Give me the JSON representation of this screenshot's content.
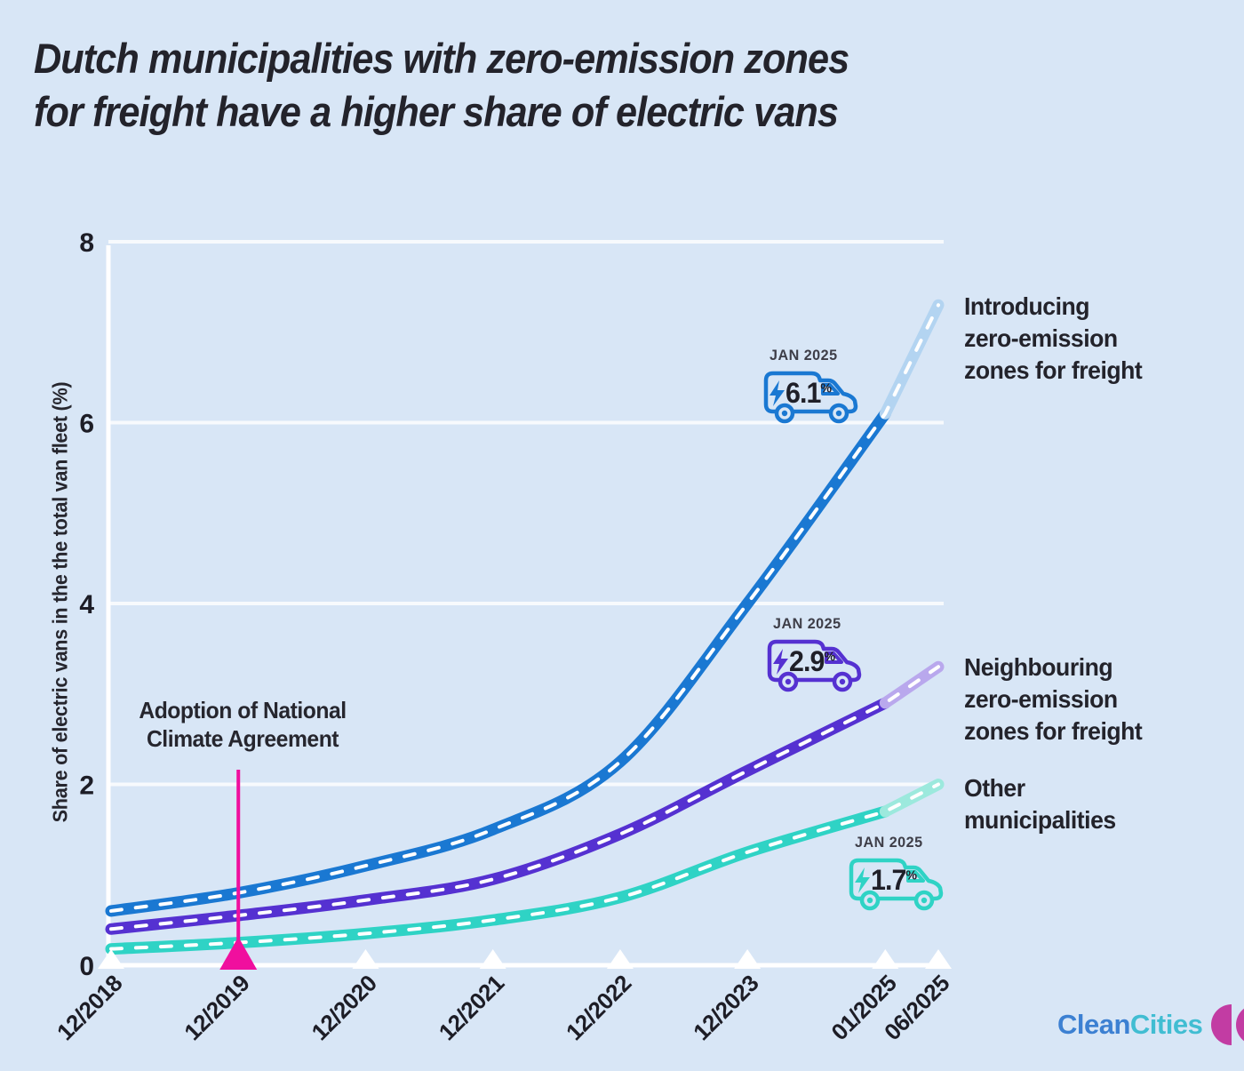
{
  "chart_data": {
    "type": "line",
    "title_lines": [
      "Dutch municipalities with zero-emission zones",
      "for freight have a higher share of electric vans"
    ],
    "ylabel": "Share of electric vans in the the total van fleet (%)",
    "ylim": [
      0,
      8
    ],
    "y_ticks": [
      "0",
      "2",
      "4",
      "6",
      "8"
    ],
    "x_tick_labels": [
      "12/2018",
      "12/2019",
      "12/2020",
      "12/2021",
      "12/2022",
      "12/2023",
      "01/2025",
      "06/2025"
    ],
    "x_months": [
      0,
      12,
      24,
      36,
      48,
      60,
      73,
      78
    ],
    "grid": "horizontal white gridlines at 2,4,6,8",
    "legend_position": "right",
    "projection_start_label": "01/2025",
    "annotation": {
      "lines": [
        "Adoption of National",
        "Climate Agreement"
      ],
      "x_label": "12/2019",
      "x_month": 12,
      "color": "#f00f9e"
    },
    "series": [
      {
        "name": "Introducing zero-emission zones for freight",
        "legend": [
          "Introducing",
          "zero-emission",
          "zones for freight"
        ],
        "color": "#1a78d2",
        "projection_color": "#b3d4f1",
        "values": [
          0.6,
          0.8,
          1.1,
          1.5,
          2.25,
          4.0,
          6.1,
          7.3
        ],
        "badge": {
          "date_label": "JAN 2025",
          "value": "6.1",
          "unit": "%"
        }
      },
      {
        "name": "Neighbouring zero-emission zones for freight",
        "legend": [
          "Neighbouring",
          "zero-emission",
          "zones for freight"
        ],
        "color": "#5531d1",
        "projection_color": "#b9a8ed",
        "values": [
          0.4,
          0.55,
          0.72,
          0.95,
          1.45,
          2.15,
          2.9,
          3.3
        ],
        "badge": {
          "date_label": "JAN 2025",
          "value": "2.9",
          "unit": "%"
        }
      },
      {
        "name": "Other municipalities",
        "legend": [
          "Other",
          "municipalities"
        ],
        "color": "#2fd3c5",
        "projection_color": "#9ce9dd",
        "values": [
          0.18,
          0.25,
          0.35,
          0.5,
          0.75,
          1.25,
          1.7,
          2.0
        ],
        "badge": {
          "date_label": "JAN 2025",
          "value": "1.7",
          "unit": "%"
        }
      }
    ]
  },
  "logo": {
    "part1": "Clean",
    "part2": "Cities",
    "part1_color": "#3c80d2",
    "part2_color": "#41bdd2",
    "mark_color": "#c23ca3"
  }
}
